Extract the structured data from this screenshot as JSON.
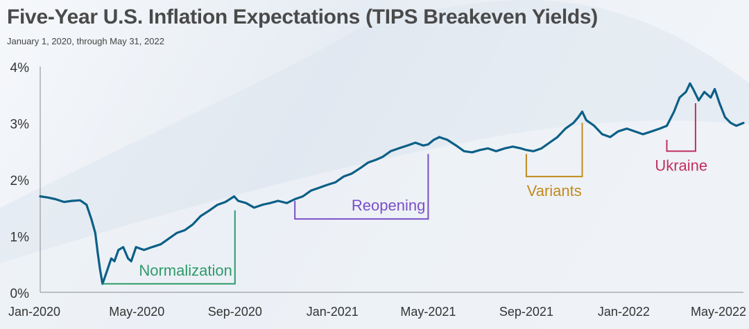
{
  "title": "Five-Year U.S. Inflation Expectations (TIPS Breakeven Yields)",
  "subtitle": "January 1, 2020, through May 31, 2022",
  "colors": {
    "line": "#0b5f86",
    "axis": "#8a8a8a",
    "tick_text": "#333333",
    "normalization": "#2e9a6a",
    "reopening": "#7a4fc9",
    "variants": "#c28a1e",
    "ukraine": "#c0305e"
  },
  "chart_data": {
    "type": "line",
    "title": "Five-Year U.S. Inflation Expectations (TIPS Breakeven Yields)",
    "subtitle": "January 1, 2020, through May 31, 2022",
    "xlabel": "",
    "ylabel": "",
    "xlim": [
      "2020-01-01",
      "2022-05-31"
    ],
    "ylim": [
      0,
      4
    ],
    "y_ticks": [
      0,
      1,
      2,
      3,
      4
    ],
    "y_tick_labels": [
      "0%",
      "1%",
      "2%",
      "3%",
      "4%"
    ],
    "x_ticks": [
      "2020-01-01",
      "2020-05-01",
      "2020-09-01",
      "2021-01-01",
      "2021-05-01",
      "2021-09-01",
      "2022-01-01",
      "2022-05-01"
    ],
    "x_tick_labels": [
      "Jan-2020",
      "May-2020",
      "Sep-2020",
      "Jan-2021",
      "May-2021",
      "Sep-2021",
      "Jan-2022",
      "May-2022"
    ],
    "grid": false,
    "series": [
      {
        "values": [
          [
            "2020-01-01",
            1.7
          ],
          [
            "2020-01-10",
            1.68
          ],
          [
            "2020-01-20",
            1.65
          ],
          [
            "2020-01-31",
            1.6
          ],
          [
            "2020-02-10",
            1.62
          ],
          [
            "2020-02-20",
            1.63
          ],
          [
            "2020-02-28",
            1.55
          ],
          [
            "2020-03-05",
            1.3
          ],
          [
            "2020-03-10",
            1.05
          ],
          [
            "2020-03-13",
            0.7
          ],
          [
            "2020-03-16",
            0.4
          ],
          [
            "2020-03-19",
            0.15
          ],
          [
            "2020-03-24",
            0.35
          ],
          [
            "2020-03-30",
            0.6
          ],
          [
            "2020-04-03",
            0.55
          ],
          [
            "2020-04-08",
            0.75
          ],
          [
            "2020-04-14",
            0.8
          ],
          [
            "2020-04-20",
            0.6
          ],
          [
            "2020-04-24",
            0.55
          ],
          [
            "2020-04-30",
            0.8
          ],
          [
            "2020-05-10",
            0.75
          ],
          [
            "2020-05-20",
            0.8
          ],
          [
            "2020-05-31",
            0.85
          ],
          [
            "2020-06-10",
            0.95
          ],
          [
            "2020-06-20",
            1.05
          ],
          [
            "2020-06-30",
            1.1
          ],
          [
            "2020-07-10",
            1.2
          ],
          [
            "2020-07-20",
            1.35
          ],
          [
            "2020-07-31",
            1.45
          ],
          [
            "2020-08-10",
            1.55
          ],
          [
            "2020-08-20",
            1.6
          ],
          [
            "2020-08-31",
            1.7
          ],
          [
            "2020-09-05",
            1.62
          ],
          [
            "2020-09-15",
            1.58
          ],
          [
            "2020-09-25",
            1.5
          ],
          [
            "2020-10-05",
            1.55
          ],
          [
            "2020-10-15",
            1.58
          ],
          [
            "2020-10-25",
            1.62
          ],
          [
            "2020-11-05",
            1.58
          ],
          [
            "2020-11-15",
            1.65
          ],
          [
            "2020-11-25",
            1.7
          ],
          [
            "2020-12-05",
            1.8
          ],
          [
            "2020-12-15",
            1.85
          ],
          [
            "2020-12-25",
            1.9
          ],
          [
            "2021-01-05",
            1.95
          ],
          [
            "2021-01-15",
            2.05
          ],
          [
            "2021-01-25",
            2.1
          ],
          [
            "2021-02-05",
            2.2
          ],
          [
            "2021-02-15",
            2.3
          ],
          [
            "2021-02-25",
            2.35
          ],
          [
            "2021-03-05",
            2.4
          ],
          [
            "2021-03-15",
            2.5
          ],
          [
            "2021-03-25",
            2.55
          ],
          [
            "2021-04-05",
            2.6
          ],
          [
            "2021-04-15",
            2.65
          ],
          [
            "2021-04-25",
            2.6
          ],
          [
            "2021-05-01",
            2.62
          ],
          [
            "2021-05-08",
            2.7
          ],
          [
            "2021-05-15",
            2.75
          ],
          [
            "2021-05-25",
            2.7
          ],
          [
            "2021-06-05",
            2.6
          ],
          [
            "2021-06-15",
            2.5
          ],
          [
            "2021-06-25",
            2.48
          ],
          [
            "2021-07-05",
            2.52
          ],
          [
            "2021-07-15",
            2.55
          ],
          [
            "2021-07-25",
            2.5
          ],
          [
            "2021-08-05",
            2.55
          ],
          [
            "2021-08-15",
            2.58
          ],
          [
            "2021-08-25",
            2.55
          ],
          [
            "2021-09-01",
            2.52
          ],
          [
            "2021-09-10",
            2.5
          ],
          [
            "2021-09-20",
            2.55
          ],
          [
            "2021-09-30",
            2.65
          ],
          [
            "2021-10-10",
            2.75
          ],
          [
            "2021-10-20",
            2.9
          ],
          [
            "2021-10-30",
            3.0
          ],
          [
            "2021-11-05",
            3.1
          ],
          [
            "2021-11-10",
            3.2
          ],
          [
            "2021-11-15",
            3.05
          ],
          [
            "2021-11-25",
            2.95
          ],
          [
            "2021-12-05",
            2.8
          ],
          [
            "2021-12-15",
            2.75
          ],
          [
            "2021-12-25",
            2.85
          ],
          [
            "2022-01-05",
            2.9
          ],
          [
            "2022-01-15",
            2.85
          ],
          [
            "2022-01-25",
            2.8
          ],
          [
            "2022-02-05",
            2.85
          ],
          [
            "2022-02-15",
            2.9
          ],
          [
            "2022-02-24",
            2.95
          ],
          [
            "2022-03-05",
            3.2
          ],
          [
            "2022-03-12",
            3.45
          ],
          [
            "2022-03-20",
            3.55
          ],
          [
            "2022-03-25",
            3.7
          ],
          [
            "2022-03-29",
            3.6
          ],
          [
            "2022-04-05",
            3.4
          ],
          [
            "2022-04-12",
            3.55
          ],
          [
            "2022-04-20",
            3.45
          ],
          [
            "2022-04-25",
            3.6
          ],
          [
            "2022-05-01",
            3.35
          ],
          [
            "2022-05-08",
            3.1
          ],
          [
            "2022-05-15",
            3.0
          ],
          [
            "2022-05-22",
            2.95
          ],
          [
            "2022-05-31",
            3.0
          ]
        ]
      }
    ],
    "annotations": [
      {
        "label": "Normalization",
        "start": "2020-03-19",
        "end": "2020-09-01",
        "start_value": 0.15,
        "end_value": 1.45,
        "bracket_low": 0.15,
        "label_position": "above-right",
        "color_key": "normalization"
      },
      {
        "label": "Reopening",
        "start": "2020-11-15",
        "end": "2021-05-01",
        "start_value": 1.62,
        "end_value": 2.45,
        "bracket_low": 1.3,
        "label_position": "above-right",
        "color_key": "reopening"
      },
      {
        "label": "Variants",
        "start": "2021-09-01",
        "end": "2021-11-10",
        "start_value": 2.45,
        "end_value": 3.0,
        "bracket_low": 2.05,
        "label_position": "below",
        "color_key": "variants"
      },
      {
        "label": "Ukraine",
        "start": "2022-02-24",
        "end": "2022-04-01",
        "start_value": 2.7,
        "end_value": 3.35,
        "bracket_low": 2.5,
        "label_position": "below",
        "color_key": "ukraine"
      }
    ]
  }
}
